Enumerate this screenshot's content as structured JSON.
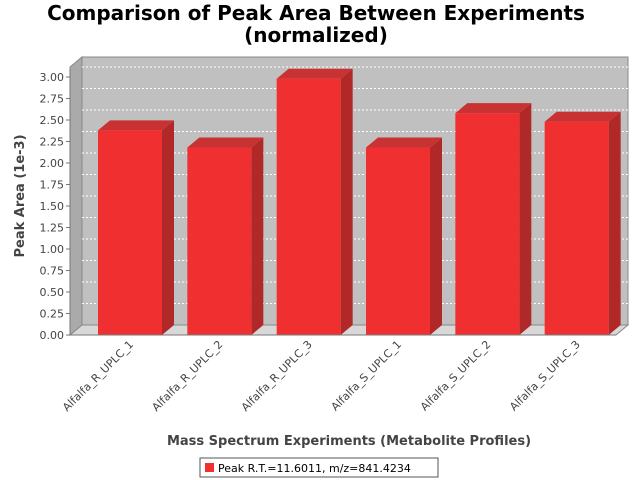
{
  "chart_data": {
    "type": "bar",
    "title": "Comparison of Peak Area Between Experiments",
    "subtitle": "(normalized)",
    "xlabel": "Mass Spectrum Experiments (Metabolite Profiles)",
    "ylabel": "Peak Area (1e-3)",
    "categories": [
      "Alfalfa_R_UPLC_1",
      "Alfalfa_R_UPLC_2",
      "Alfalfa_R_UPLC_3",
      "Alfalfa_S_UPLC_1",
      "Alfalfa_S_UPLC_2",
      "Alfalfa_S_UPLC_3"
    ],
    "series": [
      {
        "name": "Peak R.T.=11.6011, m/z=841.4234",
        "values": [
          2.38,
          2.18,
          2.98,
          2.18,
          2.58,
          2.48
        ],
        "color": "#f03030"
      }
    ],
    "ylim": [
      0,
      3.0
    ],
    "yticks": [
      "0.00",
      "0.25",
      "0.50",
      "0.75",
      "1.00",
      "1.25",
      "1.50",
      "1.75",
      "2.00",
      "2.25",
      "2.50",
      "2.75",
      "3.00"
    ],
    "grid": true,
    "legend_position": "bottom",
    "style": "3d"
  }
}
